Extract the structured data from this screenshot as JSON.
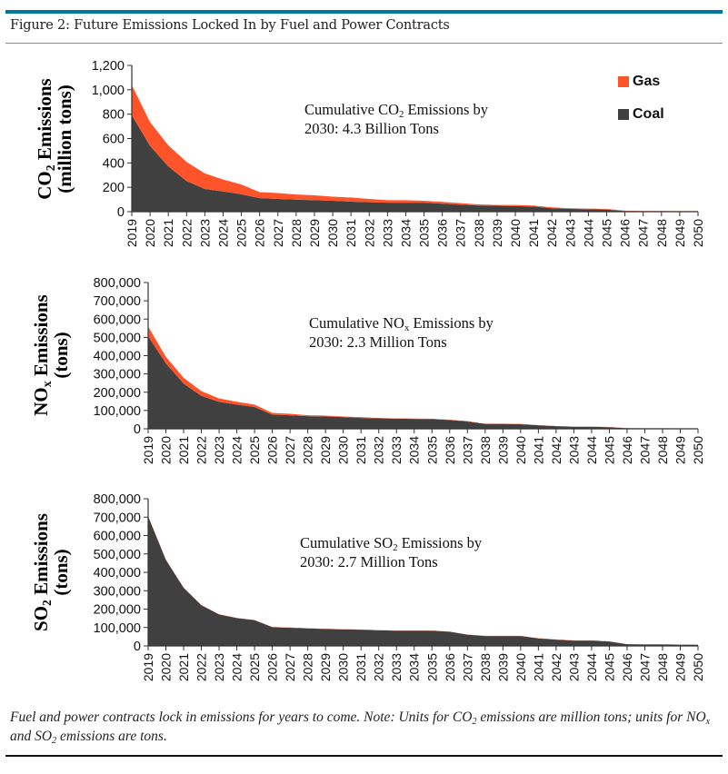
{
  "header": {
    "title": "Figure 2: Future Emissions Locked In by Fuel and Power Contracts",
    "accent_color": "#00779f"
  },
  "legend": {
    "items": [
      {
        "label": "Gas",
        "color": "#ff5329"
      },
      {
        "label": "Coal",
        "color": "#404040"
      }
    ]
  },
  "caption": {
    "p1": "Fuel and power contracts lock in emissions for years to come. Note: Units for CO",
    "sub1": "2",
    "p2": " emissions are million tons; units for NO",
    "sub2": "x",
    "p3": " and SO",
    "sub3": "2",
    "p4": " emissions are tons."
  },
  "chart_data": [
    {
      "type": "area",
      "stacked": true,
      "ylabel": {
        "line1_pre": "CO",
        "line1_sub": "2",
        "line1_post": " Emissions",
        "line2": "(million tons)"
      },
      "annotation": {
        "pre": "Cumulative CO",
        "sub": "2",
        "post": " Emissions by",
        "line2": "2030: 4.3 Billion Tons"
      },
      "ylim": [
        0,
        1200
      ],
      "yticks": [
        "0",
        "200",
        "400",
        "600",
        "800",
        "1,000",
        "1,200"
      ],
      "ytick_values": [
        0,
        200,
        400,
        600,
        800,
        1000,
        1200
      ],
      "legend_position": "top-right",
      "grid": false,
      "categories": [
        "2019",
        "2020",
        "2021",
        "2022",
        "2023",
        "2024",
        "2025",
        "2026",
        "2027",
        "2028",
        "2029",
        "2030",
        "2031",
        "2032",
        "2033",
        "2034",
        "2035",
        "2036",
        "2037",
        "2038",
        "2039",
        "2040",
        "2041",
        "2042",
        "2043",
        "2044",
        "2045",
        "2046",
        "2047",
        "2048",
        "2049",
        "2050"
      ],
      "series": [
        {
          "name": "Coal",
          "color": "#404040",
          "values": [
            792,
            539,
            371,
            252,
            186,
            166,
            143,
            111,
            104,
            99,
            94,
            89,
            82,
            77,
            74,
            74,
            74,
            65,
            58,
            50,
            48,
            46,
            42,
            28,
            22,
            20,
            17,
            5,
            4,
            4,
            3,
            3
          ]
        },
        {
          "name": "Gas",
          "color": "#ff5329",
          "values": [
            248,
            196,
            173,
            156,
            128,
            98,
            80,
            49,
            49,
            42,
            40,
            34,
            34,
            27,
            20,
            20,
            15,
            15,
            12,
            10,
            7,
            9,
            8,
            7,
            6,
            5,
            5,
            3,
            2,
            2,
            2,
            2
          ]
        }
      ]
    },
    {
      "type": "area",
      "stacked": true,
      "ylabel": {
        "line1_pre": "NO",
        "line1_sub": "x",
        "line1_post": " Emissions",
        "line2": "(tons)"
      },
      "annotation": {
        "pre": "Cumulative NO",
        "sub": "x",
        "post": " Emissions by",
        "line2": "2030: 2.3 Million Tons"
      },
      "ylim": [
        0,
        800000
      ],
      "yticks": [
        "0",
        "100,000",
        "200,000",
        "300,000",
        "400,000",
        "500,000",
        "600,000",
        "700,000",
        "800,000"
      ],
      "ytick_values": [
        0,
        100000,
        200000,
        300000,
        400000,
        500000,
        600000,
        700000,
        800000
      ],
      "grid": false,
      "categories": [
        "2019",
        "2020",
        "2021",
        "2022",
        "2023",
        "2024",
        "2025",
        "2026",
        "2027",
        "2028",
        "2029",
        "2030",
        "2031",
        "2032",
        "2033",
        "2034",
        "2035",
        "2036",
        "2037",
        "2038",
        "2039",
        "2040",
        "2041",
        "2042",
        "2043",
        "2044",
        "2045",
        "2046",
        "2047",
        "2048",
        "2049",
        "2050"
      ],
      "series": [
        {
          "name": "Coal",
          "color": "#404040",
          "values": [
            506000,
            358000,
            247000,
            180000,
            147000,
            132000,
            119000,
            77000,
            74000,
            69000,
            67000,
            64000,
            59000,
            57000,
            55000,
            54000,
            53000,
            48000,
            40000,
            27000,
            27000,
            25000,
            19000,
            14000,
            11000,
            11000,
            9000,
            3000,
            2500,
            2500,
            2000,
            2000
          ]
        },
        {
          "name": "Gas",
          "color": "#ff5329",
          "values": [
            53000,
            36000,
            32000,
            26000,
            19000,
            16000,
            13000,
            10000,
            8000,
            5000,
            5000,
            3000,
            5000,
            2000,
            2000,
            2000,
            2000,
            2000,
            2000,
            1000,
            1000,
            2000,
            1000,
            1000,
            1000,
            1000,
            1000,
            500,
            500,
            500,
            500,
            500
          ]
        }
      ]
    },
    {
      "type": "area",
      "stacked": true,
      "ylabel": {
        "line1_pre": "SO",
        "line1_sub": "2",
        "line1_post": " Emissions",
        "line2": "(tons)"
      },
      "annotation": {
        "pre": "Cumulative SO",
        "sub": "2",
        "post": "  Emissions by",
        "line2": "2030: 2.7 Million Tons"
      },
      "ylim": [
        0,
        800000
      ],
      "yticks": [
        "0",
        "100,000",
        "200,000",
        "300,000",
        "400,000",
        "500,000",
        "600,000",
        "700,000",
        "800,000"
      ],
      "ytick_values": [
        0,
        100000,
        200000,
        300000,
        400000,
        500000,
        600000,
        700000,
        800000
      ],
      "grid": false,
      "categories": [
        "2019",
        "2020",
        "2021",
        "2022",
        "2023",
        "2024",
        "2025",
        "2026",
        "2027",
        "2028",
        "2029",
        "2030",
        "2031",
        "2032",
        "2033",
        "2034",
        "2035",
        "2036",
        "2037",
        "2038",
        "2039",
        "2040",
        "2041",
        "2042",
        "2043",
        "2044",
        "2045",
        "2046",
        "2047",
        "2048",
        "2049",
        "2050"
      ],
      "series": [
        {
          "name": "Coal",
          "color": "#404040",
          "values": [
            703000,
            467000,
            316000,
            221000,
            171000,
            151000,
            140000,
            102000,
            99000,
            95000,
            92000,
            90000,
            88000,
            85000,
            83000,
            83000,
            83000,
            77000,
            61000,
            54000,
            54000,
            54000,
            41000,
            34000,
            29000,
            29000,
            24000,
            9000,
            8000,
            8000,
            7000,
            7000
          ]
        },
        {
          "name": "Gas",
          "color": "#ff5329",
          "values": [
            3000,
            2000,
            1000,
            1000,
            1000,
            1000,
            1000,
            1000,
            1000,
            1000,
            1000,
            1000,
            1000,
            1000,
            1000,
            1000,
            1000,
            1000,
            1000,
            1000,
            1000,
            1000,
            1000,
            1000,
            1000,
            1000,
            1000,
            500,
            500,
            500,
            500,
            500
          ]
        }
      ]
    }
  ]
}
